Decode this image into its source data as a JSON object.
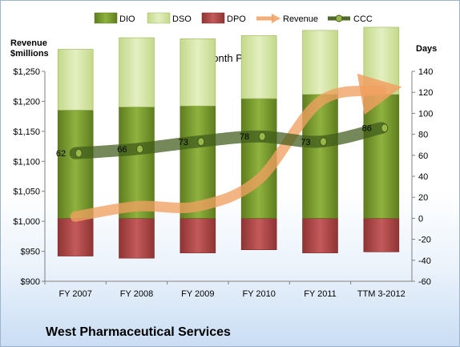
{
  "company_name": "West Pharmaceutical Services",
  "chart_data": {
    "type": "bar",
    "title": "12-Month Periods",
    "ylabel_left": "Revenue\n$millions",
    "ylabel_right": "Days",
    "categories": [
      "FY 2007",
      "FY 2008",
      "FY 2009",
      "FY 2010",
      "FY 2011",
      "TTM 3-2012"
    ],
    "left_axis": {
      "ylim": [
        900,
        1250
      ],
      "ticks": [
        "$900",
        "$950",
        "$1,000",
        "$1,050",
        "$1,100",
        "$1,150",
        "$1,200",
        "$1,250"
      ]
    },
    "right_axis": {
      "ylim": [
        -60,
        140
      ],
      "ticks": [
        "-60",
        "-40",
        "-20",
        "0",
        "20",
        "40",
        "60",
        "80",
        "100",
        "120",
        "140"
      ]
    },
    "legend": [
      "DIO",
      "DSO",
      "DPO",
      "Revenue",
      "CCC"
    ],
    "legend_position": "top",
    "grid": false,
    "series": [
      {
        "name": "DIO",
        "axis": "right",
        "values": [
          103,
          106,
          107,
          114,
          118,
          118
        ]
      },
      {
        "name": "DSO",
        "axis": "right",
        "values": [
          58,
          66,
          64,
          60,
          61,
          64
        ]
      },
      {
        "name": "DPO",
        "axis": "right",
        "values": [
          -36,
          -38,
          -33,
          -30,
          -33,
          -32
        ]
      },
      {
        "name": "Revenue",
        "axis": "left",
        "values": [
          1008,
          1025,
          1025,
          1070,
          1200,
          1218
        ]
      },
      {
        "name": "CCC",
        "axis": "right",
        "values": [
          62,
          66,
          73,
          78,
          73,
          86
        ]
      }
    ],
    "data_labels": [
      "62",
      "66",
      "73",
      "78",
      "73",
      "86"
    ],
    "colors": {
      "DIO": "#7a9a2e",
      "DSO": "#cfe29a",
      "DPO": "#b34a4a",
      "Revenue": "#f0a060",
      "CCC": "#4f6a2a"
    }
  }
}
